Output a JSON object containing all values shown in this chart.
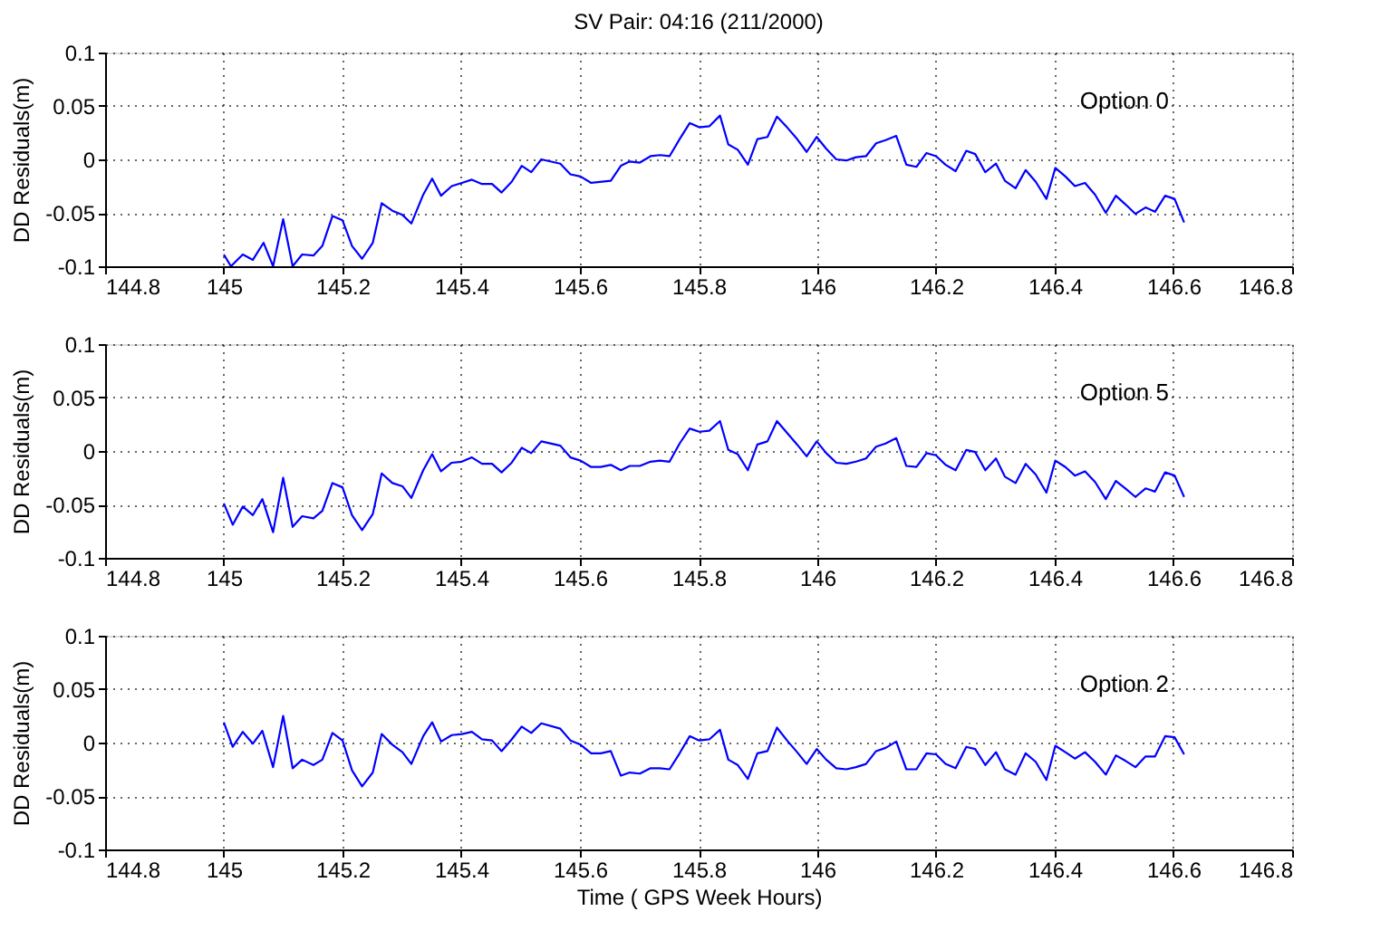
{
  "chart_data": [
    {
      "type": "line",
      "title": "SV Pair: 04:16 (211/2000)",
      "ylabel": "DD Residuals(m)",
      "annotations": [
        "Option 0"
      ],
      "xlim": [
        144.8,
        146.8
      ],
      "xticks": [
        144.8,
        145,
        145.2,
        145.4,
        145.6,
        145.8,
        146,
        146.2,
        146.4,
        146.6,
        146.8
      ],
      "ylim": [
        -0.1,
        0.1
      ],
      "yticks": [
        -0.1,
        -0.05,
        0,
        0.05,
        0.1
      ],
      "grid": true,
      "marker": "none",
      "line_style": "solid",
      "series": [
        {
          "color": "#0000ff",
          "x": [
            145,
            145.012,
            145.032,
            145.049,
            145.067,
            145.083,
            145.1,
            145.116,
            145.132,
            145.151,
            145.166,
            145.183,
            145.2,
            145.216,
            145.233,
            145.251,
            145.266,
            145.284,
            145.301,
            145.316,
            145.336,
            145.351,
            145.366,
            145.384,
            145.401,
            145.418,
            145.435,
            145.452,
            145.468,
            145.485,
            145.502,
            145.518,
            145.535,
            145.567,
            145.584,
            145.601,
            145.619,
            145.652,
            145.669,
            145.684,
            145.701,
            145.719,
            145.735,
            145.751,
            145.768,
            145.785,
            145.801,
            145.818,
            145.836,
            145.85,
            145.866,
            145.883,
            145.899,
            145.916,
            145.932,
            145.949,
            145.966,
            145.982,
            145.999,
            146.015,
            146.032,
            146.049,
            146.065,
            146.082,
            146.099,
            146.115,
            146.133,
            146.15,
            146.167,
            146.184,
            146.2,
            146.216,
            146.233,
            146.251,
            146.266,
            146.283,
            146.301,
            146.316,
            146.334,
            146.351,
            146.368,
            146.386,
            146.401,
            146.418,
            146.434,
            146.451,
            146.468,
            146.486,
            146.503,
            146.519,
            146.536,
            146.553,
            146.569,
            146.586,
            146.602,
            146.618
          ],
          "values": [
            -0.089,
            -0.1,
            -0.089,
            -0.094,
            -0.078,
            -0.1,
            -0.056,
            -0.1,
            -0.089,
            -0.09,
            -0.081,
            -0.053,
            -0.057,
            -0.081,
            -0.093,
            -0.078,
            -0.041,
            -0.048,
            -0.052,
            -0.06,
            -0.033,
            -0.018,
            -0.034,
            -0.025,
            -0.022,
            -0.019,
            -0.023,
            -0.023,
            -0.031,
            -0.021,
            -0.006,
            -0.012,
            0.0,
            -0.004,
            -0.014,
            -0.016,
            -0.022,
            -0.02,
            -0.006,
            -0.002,
            -0.003,
            0.003,
            0.004,
            0.003,
            0.019,
            0.034,
            0.03,
            0.031,
            0.041,
            0.014,
            0.009,
            -0.005,
            0.019,
            0.021,
            0.04,
            0.03,
            0.019,
            0.007,
            0.021,
            0.01,
            0.0,
            -0.001,
            0.002,
            0.003,
            0.015,
            0.018,
            0.022,
            -0.005,
            -0.007,
            0.006,
            0.003,
            -0.005,
            -0.011,
            0.008,
            0.005,
            -0.012,
            -0.004,
            -0.02,
            -0.027,
            -0.01,
            -0.021,
            -0.037,
            -0.008,
            -0.016,
            -0.025,
            -0.022,
            -0.033,
            -0.05,
            -0.034,
            -0.042,
            -0.051,
            -0.045,
            -0.049,
            -0.034,
            -0.037,
            -0.059
          ]
        }
      ]
    },
    {
      "type": "line",
      "ylabel": "DD Residuals(m)",
      "annotations": [
        "Option 5"
      ],
      "xlim": [
        144.8,
        146.8
      ],
      "xticks": [
        144.8,
        145,
        145.2,
        145.4,
        145.6,
        145.8,
        146,
        146.2,
        146.4,
        146.6,
        146.8
      ],
      "ylim": [
        -0.1,
        0.1
      ],
      "yticks": [
        -0.1,
        -0.05,
        0,
        0.05,
        0.1
      ],
      "grid": true,
      "marker": "none",
      "line_style": "solid",
      "series": [
        {
          "color": "#0000ff",
          "x": [
            145,
            145.015,
            145.032,
            145.049,
            145.065,
            145.083,
            145.1,
            145.116,
            145.132,
            145.151,
            145.166,
            145.183,
            145.2,
            145.216,
            145.233,
            145.251,
            145.266,
            145.284,
            145.301,
            145.316,
            145.336,
            145.351,
            145.366,
            145.384,
            145.401,
            145.418,
            145.435,
            145.452,
            145.468,
            145.485,
            145.502,
            145.518,
            145.535,
            145.567,
            145.584,
            145.601,
            145.619,
            145.635,
            145.652,
            145.669,
            145.684,
            145.701,
            145.719,
            145.735,
            145.751,
            145.768,
            145.785,
            145.801,
            145.818,
            145.836,
            145.85,
            145.866,
            145.883,
            145.899,
            145.916,
            145.932,
            145.949,
            145.966,
            145.982,
            145.999,
            146.015,
            146.032,
            146.049,
            146.065,
            146.082,
            146.099,
            146.115,
            146.133,
            146.15,
            146.167,
            146.184,
            146.2,
            146.216,
            146.233,
            146.251,
            146.266,
            146.283,
            146.301,
            146.316,
            146.334,
            146.351,
            146.368,
            146.386,
            146.401,
            146.418,
            146.434,
            146.451,
            146.468,
            146.486,
            146.503,
            146.519,
            146.536,
            146.553,
            146.569,
            146.586,
            146.602,
            146.618
          ],
          "values": [
            -0.049,
            -0.069,
            -0.052,
            -0.06,
            -0.045,
            -0.076,
            -0.025,
            -0.071,
            -0.061,
            -0.063,
            -0.056,
            -0.03,
            -0.034,
            -0.06,
            -0.074,
            -0.059,
            -0.021,
            -0.03,
            -0.033,
            -0.044,
            -0.018,
            -0.003,
            -0.019,
            -0.011,
            -0.01,
            -0.006,
            -0.012,
            -0.012,
            -0.02,
            -0.011,
            0.003,
            -0.002,
            0.009,
            0.005,
            -0.006,
            -0.009,
            -0.015,
            -0.015,
            -0.013,
            -0.018,
            -0.014,
            -0.014,
            -0.01,
            -0.009,
            -0.01,
            0.007,
            0.021,
            0.018,
            0.019,
            0.028,
            0.001,
            -0.003,
            -0.018,
            0.006,
            0.009,
            0.028,
            0.017,
            0.006,
            -0.005,
            0.009,
            -0.002,
            -0.011,
            -0.012,
            -0.01,
            -0.007,
            0.004,
            0.007,
            0.012,
            -0.014,
            -0.015,
            -0.002,
            -0.004,
            -0.013,
            -0.018,
            0.001,
            -0.001,
            -0.018,
            -0.007,
            -0.024,
            -0.03,
            -0.012,
            -0.022,
            -0.039,
            -0.009,
            -0.015,
            -0.023,
            -0.019,
            -0.029,
            -0.045,
            -0.028,
            -0.035,
            -0.043,
            -0.035,
            -0.038,
            -0.02,
            -0.023,
            -0.043
          ]
        }
      ]
    },
    {
      "type": "line",
      "ylabel": "DD Residuals(m)",
      "xlabel": "Time ( GPS Week Hours)",
      "annotations": [
        "Option 2"
      ],
      "xlim": [
        144.8,
        146.8
      ],
      "xticks": [
        144.8,
        145,
        145.2,
        145.4,
        145.6,
        145.8,
        146,
        146.2,
        146.4,
        146.6,
        146.8
      ],
      "ylim": [
        -0.1,
        0.1
      ],
      "yticks": [
        -0.1,
        -0.05,
        0,
        0.05,
        0.1
      ],
      "grid": true,
      "marker": "none",
      "line_style": "solid",
      "series": [
        {
          "color": "#0000ff",
          "x": [
            145,
            145.015,
            145.032,
            145.049,
            145.065,
            145.083,
            145.1,
            145.116,
            145.132,
            145.151,
            145.166,
            145.183,
            145.2,
            145.216,
            145.233,
            145.251,
            145.266,
            145.284,
            145.301,
            145.316,
            145.336,
            145.351,
            145.366,
            145.384,
            145.401,
            145.418,
            145.435,
            145.452,
            145.468,
            145.485,
            145.502,
            145.518,
            145.535,
            145.567,
            145.584,
            145.601,
            145.619,
            145.635,
            145.652,
            145.669,
            145.684,
            145.701,
            145.719,
            145.735,
            145.751,
            145.768,
            145.785,
            145.801,
            145.818,
            145.836,
            145.85,
            145.866,
            145.883,
            145.899,
            145.916,
            145.932,
            145.949,
            145.966,
            145.982,
            145.999,
            146.015,
            146.032,
            146.049,
            146.065,
            146.082,
            146.099,
            146.115,
            146.133,
            146.15,
            146.167,
            146.184,
            146.2,
            146.216,
            146.233,
            146.251,
            146.266,
            146.283,
            146.301,
            146.316,
            146.334,
            146.351,
            146.368,
            146.386,
            146.401,
            146.418,
            146.434,
            146.451,
            146.468,
            146.486,
            146.503,
            146.519,
            146.536,
            146.553,
            146.569,
            146.586,
            146.602,
            146.618
          ],
          "values": [
            0.019,
            -0.004,
            0.01,
            -0.001,
            0.011,
            -0.023,
            0.025,
            -0.024,
            -0.016,
            -0.021,
            -0.016,
            0.009,
            0.002,
            -0.026,
            -0.041,
            -0.028,
            0.008,
            -0.002,
            -0.009,
            -0.02,
            0.006,
            0.019,
            0.001,
            0.007,
            0.008,
            0.01,
            0.003,
            0.002,
            -0.008,
            0.003,
            0.015,
            0.009,
            0.018,
            0.013,
            0.002,
            -0.002,
            -0.01,
            -0.01,
            -0.008,
            -0.031,
            -0.028,
            -0.029,
            -0.024,
            -0.024,
            -0.025,
            -0.01,
            0.006,
            0.002,
            0.003,
            0.012,
            -0.016,
            -0.021,
            -0.034,
            -0.01,
            -0.008,
            0.014,
            0.002,
            -0.009,
            -0.02,
            -0.006,
            -0.016,
            -0.024,
            -0.025,
            -0.023,
            -0.02,
            -0.008,
            -0.005,
            0.001,
            -0.025,
            -0.025,
            -0.01,
            -0.011,
            -0.02,
            -0.024,
            -0.004,
            -0.006,
            -0.021,
            -0.009,
            -0.025,
            -0.03,
            -0.01,
            -0.018,
            -0.035,
            -0.003,
            -0.009,
            -0.015,
            -0.009,
            -0.018,
            -0.03,
            -0.012,
            -0.017,
            -0.023,
            -0.013,
            -0.013,
            0.006,
            0.005,
            -0.011
          ]
        }
      ]
    }
  ]
}
